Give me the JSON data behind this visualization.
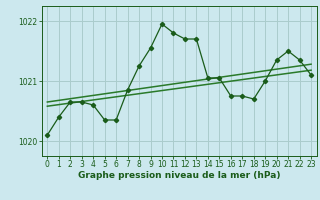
{
  "title": "Graphe pression niveau de la mer (hPa)",
  "x_values": [
    0,
    1,
    2,
    3,
    4,
    5,
    6,
    7,
    8,
    9,
    10,
    11,
    12,
    13,
    14,
    15,
    16,
    17,
    18,
    19,
    20,
    21,
    22,
    23
  ],
  "y_main": [
    1020.1,
    1020.4,
    1020.65,
    1020.65,
    1020.6,
    1020.35,
    1020.35,
    1020.85,
    1021.25,
    1021.55,
    1021.95,
    1021.8,
    1021.7,
    1021.7,
    1021.05,
    1021.05,
    1020.75,
    1020.75,
    1020.7,
    1021.0,
    1021.35,
    1021.5,
    1021.35,
    1021.1
  ],
  "trend1_x": [
    0,
    23
  ],
  "trend1_y": [
    1020.58,
    1021.18
  ],
  "trend2_x": [
    0,
    23
  ],
  "trend2_y": [
    1020.65,
    1021.28
  ],
  "ylim": [
    1019.75,
    1022.25
  ],
  "xlim": [
    -0.5,
    23.5
  ],
  "bg_color": "#cce8ee",
  "grid_color": "#aacccc",
  "line_color": "#1a5c1a",
  "trend_color": "#2a7a2a",
  "marker_color": "#1a5c1a",
  "title_color": "#1a5c1a",
  "yticks": [
    1020,
    1021,
    1022
  ],
  "xticks": [
    0,
    1,
    2,
    3,
    4,
    5,
    6,
    7,
    8,
    9,
    10,
    11,
    12,
    13,
    14,
    15,
    16,
    17,
    18,
    19,
    20,
    21,
    22,
    23
  ],
  "tick_fontsize": 5.5,
  "title_fontsize": 6.5
}
